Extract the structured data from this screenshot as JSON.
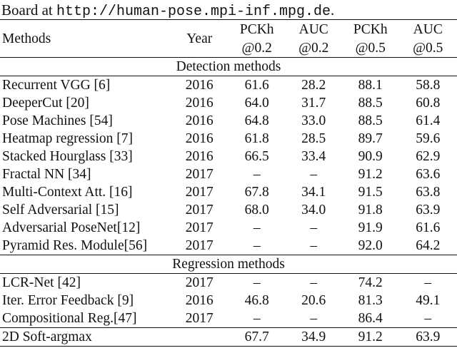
{
  "caption_tail": {
    "prefix": "Board at ",
    "url": "http://human-pose.mpi-inf.mpg.de",
    "suffix": "."
  },
  "table": {
    "headers": {
      "method": "Methods",
      "year": "Year",
      "col1_top": "PCKh",
      "col1_bottom": "@0.2",
      "col2_top": "AUC",
      "col2_bottom": "@0.2",
      "col3_top": "PCKh",
      "col3_bottom": "@0.5",
      "col4_top": "AUC",
      "col4_bottom": "@0.5"
    },
    "detection_label": "Detection methods",
    "detection_rows": [
      {
        "method": "Recurrent VGG [6]",
        "year": "2016",
        "pckh02": "61.6",
        "auc02": "28.2",
        "pckh05": "88.1",
        "auc05": "58.8"
      },
      {
        "method": "DeeperCut [20]",
        "year": "2016",
        "pckh02": "64.0",
        "auc02": "31.7",
        "pckh05": "88.5",
        "auc05": "60.8"
      },
      {
        "method": "Pose Machines [54]",
        "year": "2016",
        "pckh02": "64.8",
        "auc02": "33.0",
        "pckh05": "88.5",
        "auc05": "61.4"
      },
      {
        "method": "Heatmap regression [7]",
        "year": "2016",
        "pckh02": "61.8",
        "auc02": "28.5",
        "pckh05": "89.7",
        "auc05": "59.6"
      },
      {
        "method": "Stacked Hourglass [33]",
        "year": "2016",
        "pckh02": "66.5",
        "auc02": "33.4",
        "pckh05": "90.9",
        "auc05": "62.9"
      },
      {
        "method": "Fractal NN [34]",
        "year": "2017",
        "pckh02": "–",
        "auc02": "–",
        "pckh05": "91.2",
        "auc05": "63.6"
      },
      {
        "method": "Multi-Context Att. [16]",
        "year": "2017",
        "pckh02": "67.8",
        "auc02": "34.1",
        "pckh05": "91.5",
        "auc05": "63.8"
      },
      {
        "method": "Self Adversarial [15]",
        "year": "2017",
        "pckh02": "68.0",
        "auc02": "34.0",
        "pckh05": "91.8",
        "auc05": "63.9"
      },
      {
        "method": "Adversarial PoseNet[12]",
        "year": "2017",
        "pckh02": "–",
        "auc02": "–",
        "pckh05": "91.9",
        "auc05": "61.6"
      },
      {
        "method": "Pyramid Res. Module[56]",
        "year": "2017",
        "pckh02": "–",
        "auc02": "–",
        "pckh05": "92.0",
        "auc05": "64.2"
      }
    ],
    "regression_label": "Regression methods",
    "regression_rows": [
      {
        "method": "LCR-Net [42]",
        "year": "2017",
        "pckh02": "–",
        "auc02": "–",
        "pckh05": "74.2",
        "auc05": "–"
      },
      {
        "method": "Iter. Error Feedback [9]",
        "year": "2016",
        "pckh02": "46.8",
        "auc02": "20.6",
        "pckh05": "81.3",
        "auc05": "49.1"
      },
      {
        "method": "Compositional Reg.[47]",
        "year": "2017",
        "pckh02": "–",
        "auc02": "–",
        "pckh05": "86.4",
        "auc05": "–"
      }
    ],
    "ours_row": {
      "method": "2D Soft-argmax",
      "year": "",
      "pckh02": "67.7",
      "auc02": "34.9",
      "pckh05": "91.2",
      "auc05": "63.9"
    }
  }
}
